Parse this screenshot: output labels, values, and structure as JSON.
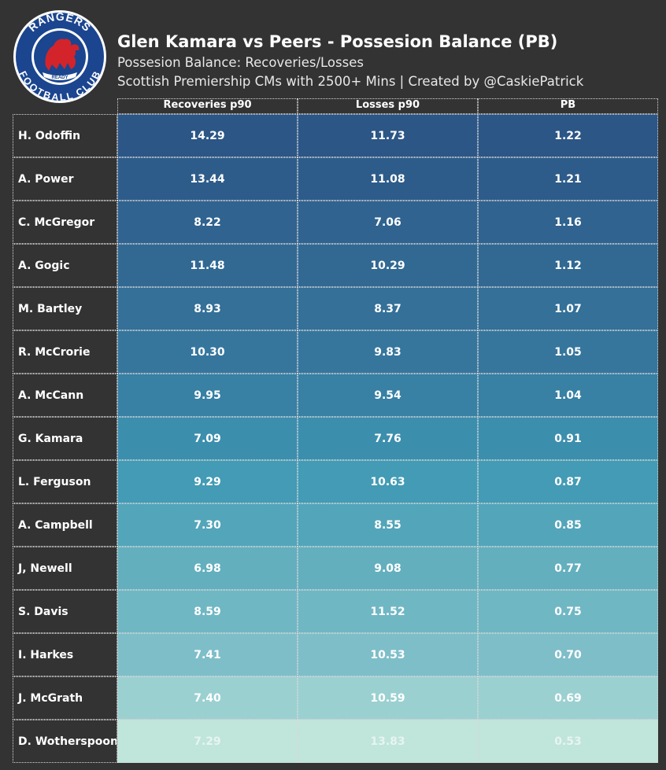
{
  "title": "Glen Kamara vs Peers - Possesion Balance (PB)",
  "subtitle": "Possesion Balance: Recoveries/Losses",
  "subtitle2": "Scottish Premiership CMs with 2500+ Mins | Created by @CaskiePatrick",
  "logo": {
    "top_text": "RANGERS",
    "bottom_text": "FOOTBALL CLUB",
    "ribbon_text": "READY",
    "colors": {
      "ring": "#1b458f",
      "inner": "#ffffff",
      "lion": "#d3242b"
    }
  },
  "colors": {
    "background": "#333333",
    "scale_dark": "#2c5685",
    "scale_light": "#c0e5db"
  },
  "chart_data": {
    "type": "table",
    "columns": [
      "Recoveries p90",
      "Losses p90",
      "PB"
    ],
    "rows": [
      {
        "player": "H. Odoffin",
        "recoveries": "14.29",
        "losses": "11.73",
        "pb": "1.22"
      },
      {
        "player": "A. Power",
        "recoveries": "13.44",
        "losses": "11.08",
        "pb": "1.21"
      },
      {
        "player": "C. McGregor",
        "recoveries": "8.22",
        "losses": "7.06",
        "pb": "1.16"
      },
      {
        "player": "A. Gogic",
        "recoveries": "11.48",
        "losses": "10.29",
        "pb": "1.12"
      },
      {
        "player": "M. Bartley",
        "recoveries": "8.93",
        "losses": "8.37",
        "pb": "1.07"
      },
      {
        "player": "R. McCrorie",
        "recoveries": "10.30",
        "losses": "9.83",
        "pb": "1.05"
      },
      {
        "player": "A. McCann",
        "recoveries": "9.95",
        "losses": "9.54",
        "pb": "1.04"
      },
      {
        "player": "G. Kamara",
        "recoveries": "7.09",
        "losses": "7.76",
        "pb": "0.91"
      },
      {
        "player": "L. Ferguson",
        "recoveries": "9.29",
        "losses": "10.63",
        "pb": "0.87"
      },
      {
        "player": "A. Campbell",
        "recoveries": "7.30",
        "losses": "8.55",
        "pb": "0.85"
      },
      {
        "player": "J, Newell",
        "recoveries": "6.98",
        "losses": "9.08",
        "pb": "0.77"
      },
      {
        "player": "S. Davis",
        "recoveries": "8.59",
        "losses": "11.52",
        "pb": "0.75"
      },
      {
        "player": "I. Harkes",
        "recoveries": "7.41",
        "losses": "10.53",
        "pb": "0.70"
      },
      {
        "player": "J. McGrath",
        "recoveries": "7.40",
        "losses": "10.59",
        "pb": "0.69"
      },
      {
        "player": "D. Wotherspoon",
        "recoveries": "7.29",
        "losses": "13.83",
        "pb": "0.53"
      }
    ]
  }
}
